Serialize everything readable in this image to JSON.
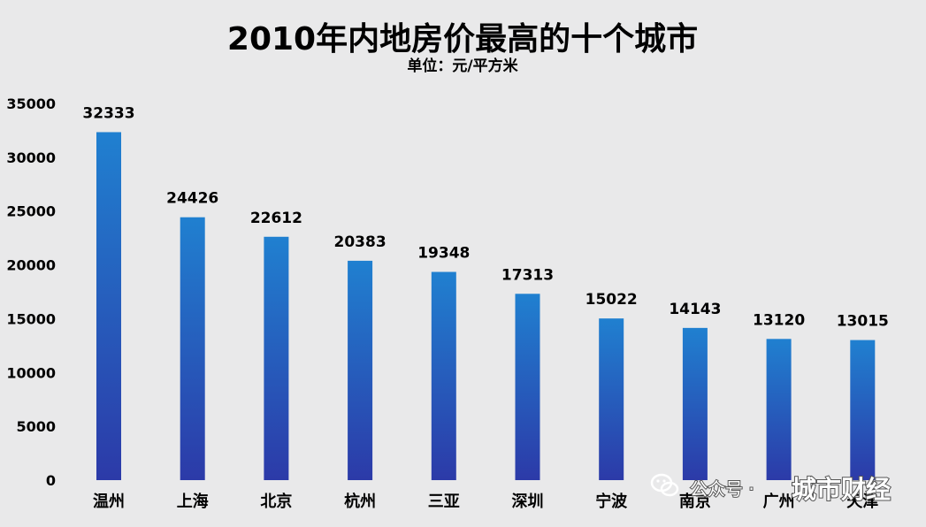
{
  "chart_data": {
    "type": "bar",
    "title": "2010年内地房价最高的十个城市",
    "subtitle": "单位：元/平方米",
    "categories": [
      "温州",
      "上海",
      "北京",
      "杭州",
      "三亚",
      "深圳",
      "宁波",
      "南京",
      "广州",
      "天津"
    ],
    "values": [
      32333,
      24426,
      22612,
      20383,
      19348,
      17313,
      15022,
      14143,
      13120,
      13015
    ],
    "ylim": [
      0,
      35000
    ],
    "yticks": [
      0,
      5000,
      10000,
      15000,
      20000,
      25000,
      30000,
      35000
    ],
    "grid": false,
    "legend": "none",
    "colors": {
      "bar_top": "#2080d0",
      "bar_bottom": "#2c3aa8",
      "background": "#e9e9ea"
    }
  },
  "watermark": {
    "icon": "wechat-icon",
    "prefix": "公众号 ·",
    "brand": "城市财经"
  }
}
